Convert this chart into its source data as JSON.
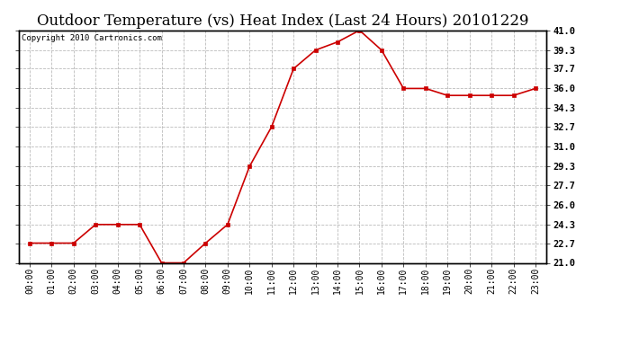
{
  "title": "Outdoor Temperature (vs) Heat Index (Last 24 Hours) 20101229",
  "copyright": "Copyright 2010 Cartronics.com",
  "x_labels": [
    "00:00",
    "01:00",
    "02:00",
    "03:00",
    "04:00",
    "05:00",
    "06:00",
    "07:00",
    "08:00",
    "09:00",
    "10:00",
    "11:00",
    "12:00",
    "13:00",
    "14:00",
    "15:00",
    "16:00",
    "17:00",
    "18:00",
    "19:00",
    "20:00",
    "21:00",
    "22:00",
    "23:00"
  ],
  "y_values": [
    22.7,
    22.7,
    22.7,
    24.3,
    24.3,
    24.3,
    21.0,
    21.0,
    22.7,
    24.3,
    29.3,
    32.7,
    37.7,
    39.3,
    40.0,
    41.0,
    39.3,
    36.0,
    36.0,
    35.4,
    35.4,
    35.4,
    35.4,
    36.0
  ],
  "y_ticks": [
    21.0,
    22.7,
    24.3,
    26.0,
    27.7,
    29.3,
    31.0,
    32.7,
    34.3,
    36.0,
    37.7,
    39.3,
    41.0
  ],
  "ylim": [
    21.0,
    41.0
  ],
  "line_color": "#cc0000",
  "marker_color": "#cc0000",
  "bg_color": "#ffffff",
  "plot_bg_color": "#ffffff",
  "grid_color": "#bbbbbb",
  "title_fontsize": 12,
  "copyright_fontsize": 6.5,
  "tick_fontsize": 7.5,
  "xlabel_fontsize": 7
}
